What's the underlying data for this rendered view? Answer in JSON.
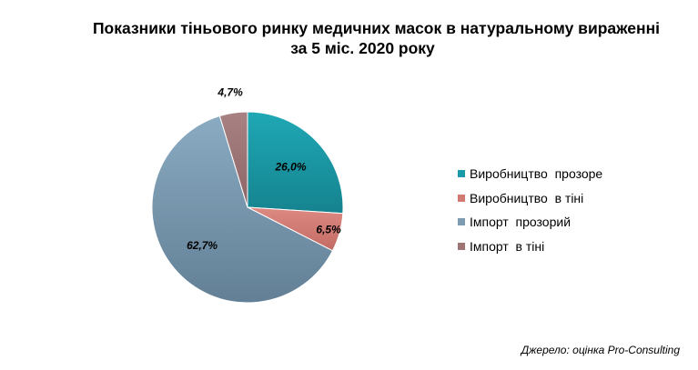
{
  "title": {
    "line1": "Показники тіньового ринку медичних масок в натуральному вираженні",
    "line2": "за 5 міс. 2020 року"
  },
  "chart_data": {
    "type": "pie",
    "title": "Показники тіньового ринку медичних масок в натуральному вираженні за 5 міс. 2020 року",
    "categories": [
      "Виробництво  прозоре",
      "Виробництво  в тіні",
      "Імпорт  прозорий",
      "Імпорт  в тіні"
    ],
    "values": [
      26.0,
      6.5,
      62.7,
      4.7
    ],
    "data_labels": [
      "26,0%",
      "6,5%",
      "62,7%",
      "4,7%"
    ],
    "colors": [
      "#1a9aa8",
      "#d07a73",
      "#7d9cb2",
      "#9e7475"
    ],
    "legend_position": "right"
  },
  "source": "Джерело: оцінка Pro-Consulting"
}
